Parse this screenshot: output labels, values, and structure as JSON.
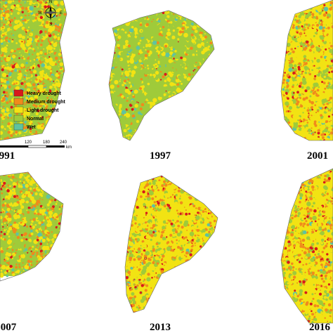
{
  "panels": [
    {
      "label": "991",
      "tone": "mixed"
    },
    {
      "label": "1997",
      "tone": "wet"
    },
    {
      "label": "2001",
      "tone": "dry"
    },
    {
      "label": "007",
      "tone": "mixed"
    },
    {
      "label": "2013",
      "tone": "dry"
    },
    {
      "label": "2016",
      "tone": "dry"
    }
  ],
  "legend": [
    {
      "name": "Heavy drought",
      "color": "#d7191c"
    },
    {
      "name": "Medium drought",
      "color": "#f08a1c"
    },
    {
      "name": "Light drought",
      "color": "#f2e313"
    },
    {
      "name": "Normal",
      "color": "#9fcb3a"
    },
    {
      "name": "Wet",
      "color": "#5fc3a0"
    }
  ],
  "compass": {
    "n": "N",
    "w": "W",
    "e": "E",
    "s": "S"
  },
  "scale": {
    "ticks": [
      "120",
      "180",
      "240"
    ],
    "unit": "km"
  }
}
